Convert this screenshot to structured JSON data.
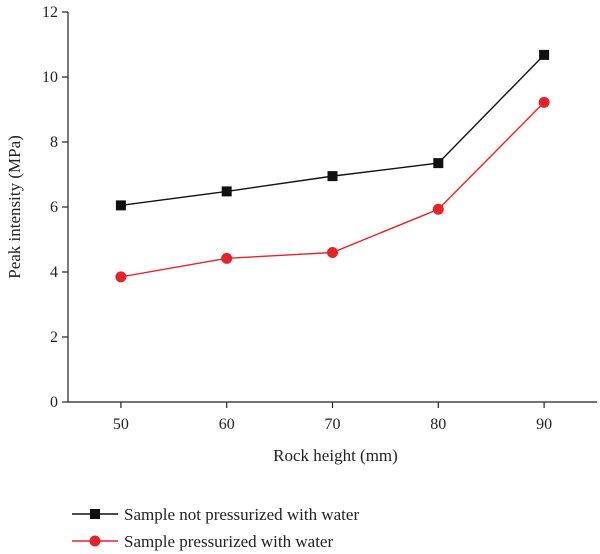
{
  "chart_data": {
    "type": "line",
    "x": [
      50,
      60,
      70,
      80,
      90
    ],
    "xlabel": "Rock height (mm)",
    "ylabel": "Peak intensity (MPa)",
    "xlim": [
      45,
      95
    ],
    "ylim": [
      0,
      12
    ],
    "xticks": [
      "50",
      "60",
      "70",
      "80",
      "90"
    ],
    "yticks": [
      "0",
      "2",
      "4",
      "6",
      "8",
      "10",
      "12"
    ],
    "grid": false,
    "legend_position": "bottom-left, below plot",
    "series": [
      {
        "name": "Sample not pressurized with water",
        "values": [
          6.05,
          6.48,
          6.95,
          7.35,
          10.68
        ],
        "color": "#111111",
        "marker": "square"
      },
      {
        "name": "Sample pressurized with water",
        "values": [
          3.85,
          4.42,
          4.6,
          5.93,
          9.22
        ],
        "color": "#e3242b",
        "marker": "circle"
      }
    ]
  }
}
